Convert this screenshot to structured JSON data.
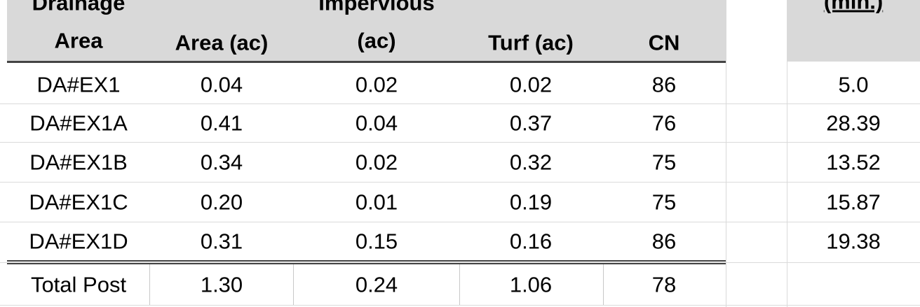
{
  "header": {
    "columns": [
      [
        "Drainage",
        "Area"
      ],
      [
        "Area (ac)"
      ],
      [
        "Impervious",
        "(ac)"
      ],
      [
        "Turf (ac)"
      ],
      [
        "CN"
      ]
    ],
    "time": "(min.)"
  },
  "rows": [
    [
      "DA#EX1",
      "0.04",
      "0.02",
      "0.02",
      "86",
      "5.0"
    ],
    [
      "DA#EX1A",
      "0.41",
      "0.04",
      "0.37",
      "76",
      "28.39"
    ],
    [
      "DA#EX1B",
      "0.34",
      "0.02",
      "0.32",
      "75",
      "13.52"
    ],
    [
      "DA#EX1C",
      "0.20",
      "0.01",
      "0.19",
      "75",
      "15.87"
    ],
    [
      "DA#EX1D",
      "0.31",
      "0.15",
      "0.16",
      "86",
      "19.38"
    ]
  ],
  "total": [
    "Total Post",
    "1.30",
    "0.24",
    "1.06",
    "78"
  ]
}
